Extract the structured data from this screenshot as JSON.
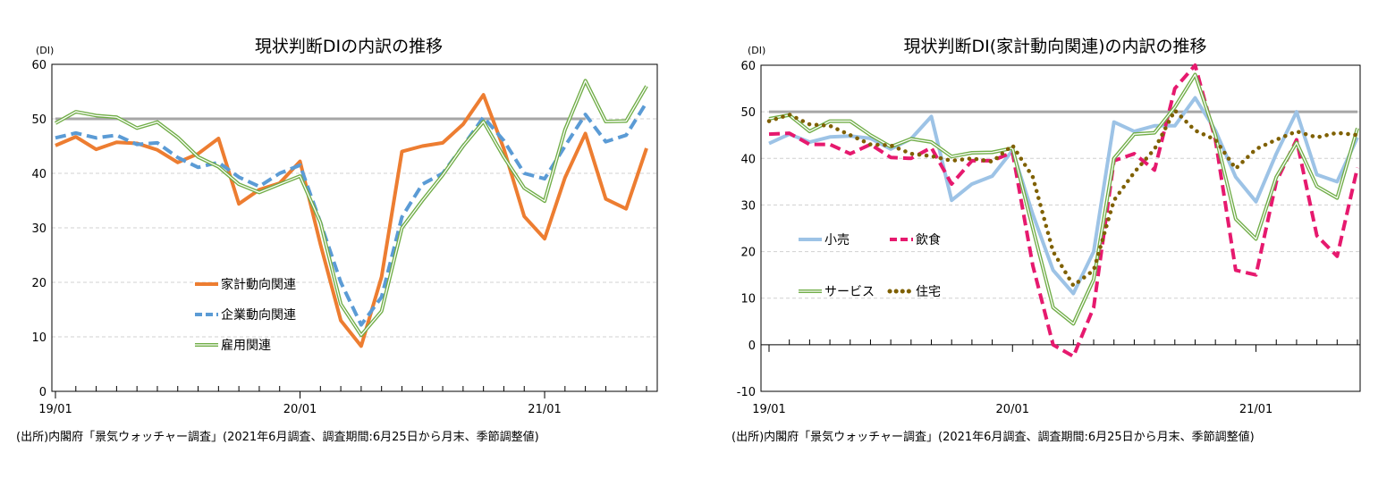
{
  "chart_data": [
    {
      "type": "line",
      "title": "現状判断DIの内訳の推移",
      "ylabel": "(DI)",
      "ylim": [
        0,
        60
      ],
      "yticks": [
        0,
        10,
        20,
        30,
        40,
        50,
        60
      ],
      "x": [
        "19/01",
        "19/02",
        "19/03",
        "19/04",
        "19/05",
        "19/06",
        "19/07",
        "19/08",
        "19/09",
        "19/10",
        "19/11",
        "19/12",
        "20/01",
        "20/02",
        "20/03",
        "20/04",
        "20/05",
        "20/06",
        "20/07",
        "20/08",
        "20/09",
        "20/10",
        "20/11",
        "20/12",
        "21/01",
        "21/02",
        "21/03",
        "21/04",
        "21/05",
        "21/06"
      ],
      "xtick_labels": [
        "19/01",
        "20/01",
        "21/01"
      ],
      "reference_line": 50,
      "grid": true,
      "legend_placement": "center-left",
      "series": [
        {
          "name": "家計動向関連",
          "color": "#ed7d31",
          "style": "solid",
          "values": [
            45.1,
            46.7,
            44.4,
            45.7,
            45.5,
            44.3,
            42.0,
            43.6,
            46.4,
            34.4,
            37.0,
            38.2,
            42.2,
            27.0,
            13.0,
            8.3,
            21.0,
            44.0,
            45.0,
            45.6,
            49.0,
            54.4,
            44.5,
            32.1,
            28.0,
            39.2,
            47.3,
            35.3,
            33.5,
            44.6
          ]
        },
        {
          "name": "企業動向関連",
          "color": "#5b9bd5",
          "style": "dashed",
          "values": [
            46.5,
            47.4,
            46.5,
            47.0,
            45.3,
            45.6,
            42.9,
            41.1,
            42.0,
            39.3,
            37.6,
            40.0,
            41.5,
            31.0,
            20.0,
            12.2,
            17.3,
            32.0,
            38.0,
            40.0,
            45.0,
            50.3,
            46.0,
            40.0,
            39.0,
            45.0,
            50.8,
            45.8,
            47.0,
            53.0
          ]
        },
        {
          "name": "雇用関連",
          "color": "#70ad47",
          "style": "double",
          "values": [
            49.2,
            51.3,
            50.6,
            50.3,
            48.3,
            49.4,
            46.6,
            43.0,
            41.2,
            38.0,
            36.5,
            38.0,
            39.5,
            31.0,
            16.0,
            10.3,
            14.7,
            30.0,
            35.0,
            39.7,
            45.0,
            49.5,
            43.0,
            37.3,
            34.9,
            48.0,
            57.0,
            49.5,
            49.6,
            56.0
          ]
        }
      ],
      "source": "(出所)内閣府「景気ウォッチャー調査」(2021年6月調査、調査期間:6月25日から月末、季節調整値)"
    },
    {
      "type": "line",
      "title": "現状判断DI(家計動向関連)の内訳の推移",
      "ylabel": "(DI)",
      "ylim": [
        -10,
        60
      ],
      "yticks": [
        -10,
        0,
        10,
        20,
        30,
        40,
        50,
        60
      ],
      "x": [
        "19/01",
        "19/02",
        "19/03",
        "19/04",
        "19/05",
        "19/06",
        "19/07",
        "19/08",
        "19/09",
        "19/10",
        "19/11",
        "19/12",
        "20/01",
        "20/02",
        "20/03",
        "20/04",
        "20/05",
        "20/06",
        "20/07",
        "20/08",
        "20/09",
        "20/10",
        "20/11",
        "20/12",
        "21/01",
        "21/02",
        "21/03",
        "21/04",
        "21/05",
        "21/06"
      ],
      "xtick_labels": [
        "19/01",
        "20/01",
        "21/01"
      ],
      "reference_line": 50,
      "grid": true,
      "legend_placement": "center-left",
      "series": [
        {
          "name": "小売",
          "color": "#9dc3e6",
          "style": "solid",
          "values": [
            43.2,
            45.2,
            43.5,
            44.6,
            44.8,
            44.3,
            42.0,
            44.2,
            49.0,
            31.0,
            34.5,
            36.2,
            41.7,
            28.0,
            16.0,
            11.0,
            20.0,
            47.8,
            45.8,
            47.0,
            47.0,
            53.0,
            46.0,
            36.0,
            30.7,
            41.0,
            50.0,
            36.5,
            35.0,
            44.5
          ]
        },
        {
          "name": "飲食",
          "color": "#e6196e",
          "style": "dashed",
          "values": [
            45.2,
            45.4,
            43.0,
            43.0,
            41.0,
            43.0,
            40.2,
            40.0,
            42.3,
            34.5,
            39.5,
            39.5,
            41.3,
            17.0,
            0.0,
            -2.5,
            8.0,
            39.5,
            41.0,
            37.5,
            55.0,
            60.0,
            44.0,
            16.0,
            15.0,
            35.0,
            44.0,
            23.4,
            19.0,
            38.0
          ]
        },
        {
          "name": "サービス",
          "color": "#70ad47",
          "style": "double",
          "values": [
            48.5,
            49.3,
            45.8,
            48.0,
            48.0,
            45.0,
            42.5,
            44.2,
            43.5,
            40.4,
            41.2,
            41.3,
            42.2,
            25.0,
            8.0,
            4.5,
            14.0,
            40.0,
            45.2,
            45.5,
            51.0,
            58.0,
            45.0,
            27.0,
            22.7,
            36.0,
            43.4,
            34.0,
            31.5,
            46.5
          ]
        },
        {
          "name": "住宅",
          "color": "#7f6000",
          "style": "dotted",
          "values": [
            48.0,
            49.4,
            47.3,
            47.0,
            45.0,
            43.0,
            42.8,
            41.0,
            40.5,
            39.5,
            40.0,
            39.3,
            42.8,
            36.0,
            20.0,
            12.7,
            16.0,
            31.0,
            37.0,
            42.0,
            50.3,
            46.0,
            44.0,
            37.8,
            42.0,
            44.0,
            45.8,
            44.5,
            45.5,
            45.0
          ]
        }
      ],
      "source": "(出所)内閣府「景気ウォッチャー調査」(2021年6月調査、調査期間:6月25日から月末、季節調整値)"
    }
  ]
}
